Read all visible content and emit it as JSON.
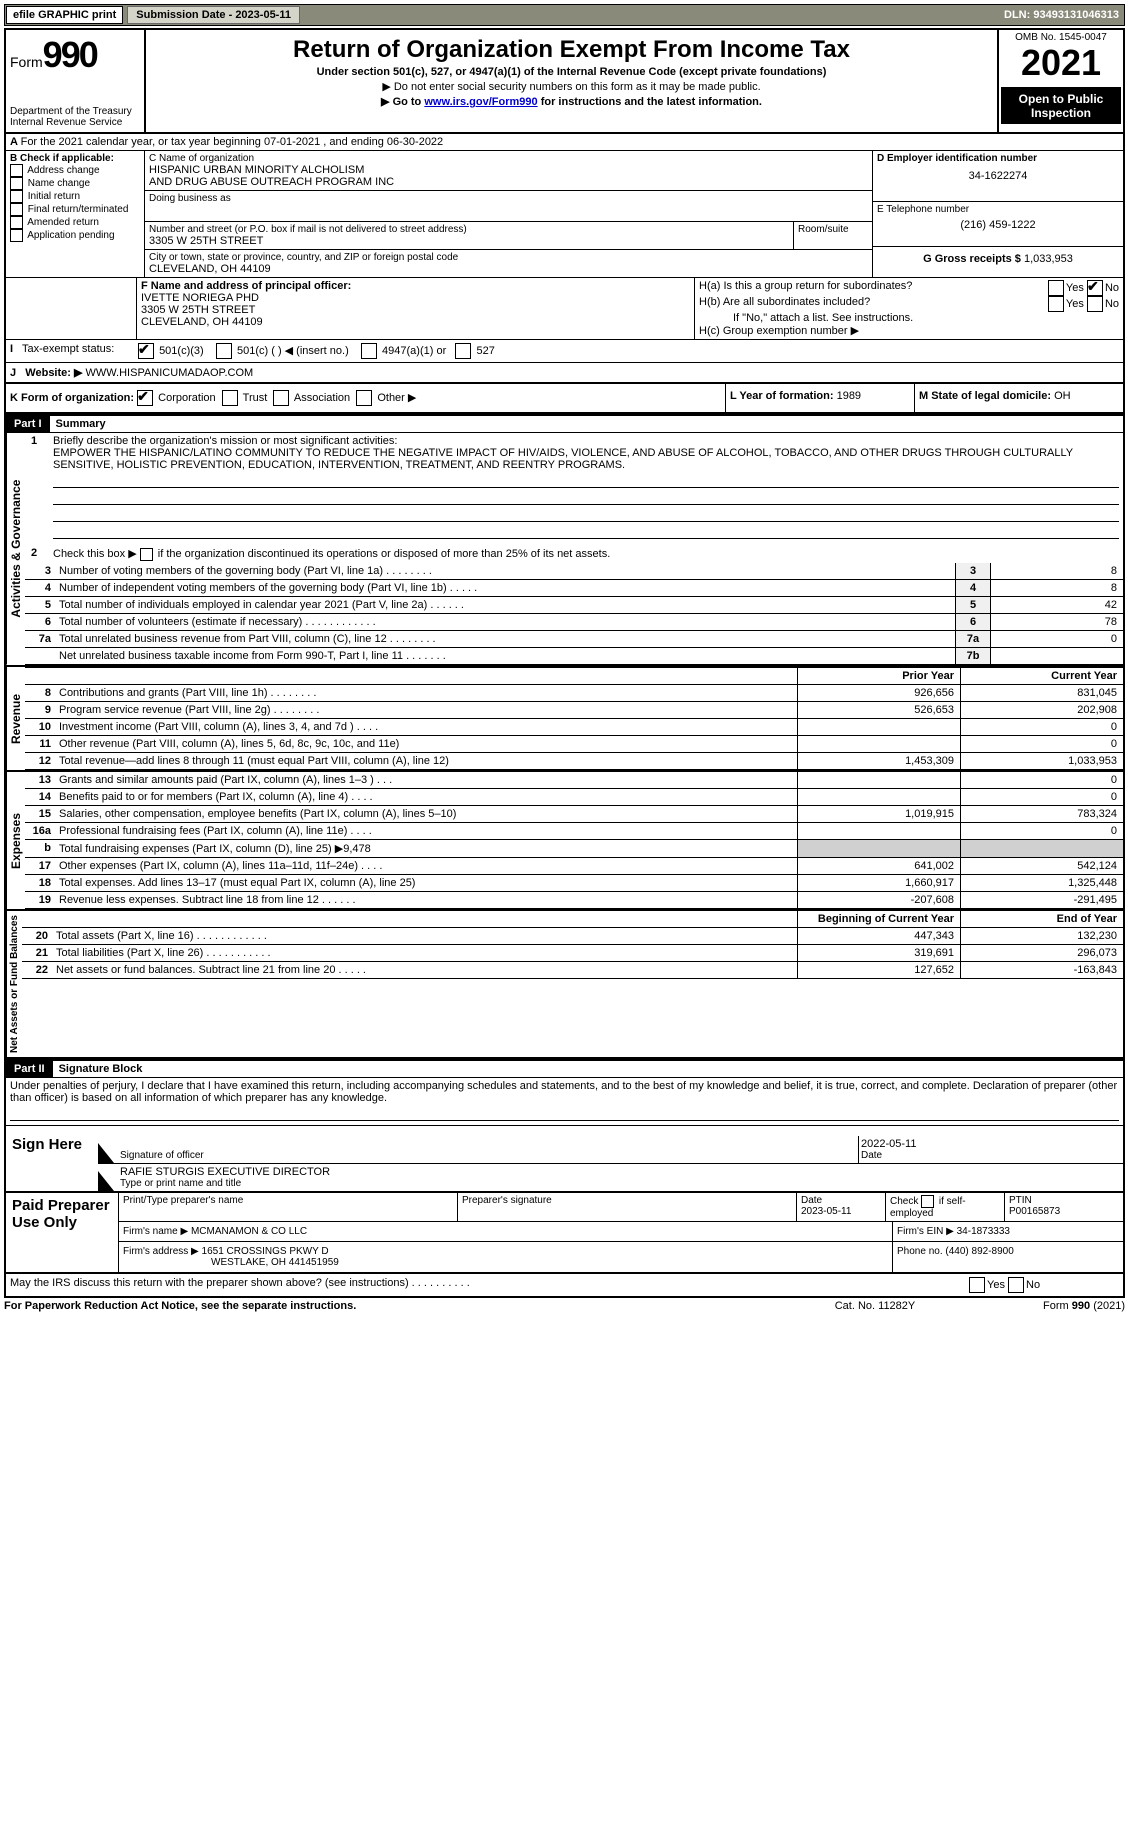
{
  "topbar": {
    "efile": "efile GRAPHIC print",
    "submission_label": "Submission Date - 2023-05-11",
    "dln": "DLN: 93493131046313"
  },
  "header": {
    "form_label": "Form",
    "form_num": "990",
    "dept": "Department of the Treasury",
    "irs": "Internal Revenue Service",
    "title": "Return of Organization Exempt From Income Tax",
    "subtitle": "Under section 501(c), 527, or 4947(a)(1) of the Internal Revenue Code (except private foundations)",
    "note1": "▶ Do not enter social security numbers on this form as it may be made public.",
    "note2_pre": "▶ Go to ",
    "note2_link": "www.irs.gov/Form990",
    "note2_post": " for instructions and the latest information.",
    "omb": "OMB No. 1545-0047",
    "year": "2021",
    "open": "Open to Public Inspection"
  },
  "A": {
    "text": "For the 2021 calendar year, or tax year beginning 07-01-2021    , and ending 06-30-2022"
  },
  "B": {
    "label": "B Check if applicable:",
    "opts": [
      "Address change",
      "Name change",
      "Initial return",
      "Final return/terminated",
      "Amended return",
      "Application pending"
    ]
  },
  "C": {
    "name_label": "C Name of organization",
    "name1": "HISPANIC URBAN MINORITY ALCHOLISM",
    "name2": "AND DRUG ABUSE OUTREACH PROGRAM INC",
    "dba": "Doing business as",
    "street_label": "Number and street (or P.O. box if mail is not delivered to street address)",
    "room": "Room/suite",
    "street": "3305 W 25TH STREET",
    "city_label": "City or town, state or province, country, and ZIP or foreign postal code",
    "city": "CLEVELAND, OH  44109"
  },
  "D": {
    "label": "D Employer identification number",
    "val": "34-1622274"
  },
  "E": {
    "label": "E Telephone number",
    "val": "(216) 459-1222"
  },
  "G": {
    "label": "G Gross receipts $",
    "val": "1,033,953"
  },
  "F": {
    "label": "F  Name and address of principal officer:",
    "name": "IVETTE NORIEGA PHD",
    "street": "3305 W 25TH STREET",
    "city": "CLEVELAND, OH  44109"
  },
  "H": {
    "a": "H(a)  Is this a group return for subordinates?",
    "b": "H(b)  Are all subordinates included?",
    "b_note": "If \"No,\" attach a list. See instructions.",
    "c": "H(c)  Group exemption number ▶"
  },
  "I": {
    "label": "Tax-exempt status:",
    "opt1": "501(c)(3)",
    "opt2": "501(c) (   ) ◀ (insert no.)",
    "opt3": "4947(a)(1) or",
    "opt4": "527"
  },
  "J": {
    "label": "Website: ▶",
    "val": "WWW.HISPANICUMADAOP.COM"
  },
  "K": {
    "label": "K Form of organization:",
    "opts": [
      "Corporation",
      "Trust",
      "Association",
      "Other ▶"
    ]
  },
  "L": {
    "label": "L Year of formation:",
    "val": "1989"
  },
  "M": {
    "label": "M State of legal domicile:",
    "val": "OH"
  },
  "part1": {
    "header": "Part I",
    "title": "Summary",
    "q1": "Briefly describe the organization's mission or most significant activities:",
    "mission": "EMPOWER THE HISPANIC/LATINO COMMUNITY TO REDUCE THE NEGATIVE IMPACT OF HIV/AIDS, VIOLENCE, AND ABUSE OF ALCOHOL, TOBACCO, AND OTHER DRUGS THROUGH CULTURALLY SENSITIVE, HOLISTIC PREVENTION, EDUCATION, INTERVENTION, TREATMENT, AND REENTRY PROGRAMS.",
    "q2": "Check this box ▶       if the organization discontinued its operations or disposed of more than 25% of its net assets.",
    "gov_label": "Activities & Governance",
    "rev_label": "Revenue",
    "exp_label": "Expenses",
    "net_label": "Net Assets or Fund Balances",
    "rows_gov": [
      {
        "n": "3",
        "t": "Number of voting members of the governing body (Part VI, line 1a)   .    .    .    .    .    .    .    .",
        "k": "3",
        "v": "8"
      },
      {
        "n": "4",
        "t": "Number of independent voting members of the governing body (Part VI, line 1b)   .    .    .    .    .",
        "k": "4",
        "v": "8"
      },
      {
        "n": "5",
        "t": "Total number of individuals employed in calendar year 2021 (Part V, line 2a)   .    .    .    .    .    .",
        "k": "5",
        "v": "42"
      },
      {
        "n": "6",
        "t": "Total number of volunteers (estimate if necessary)   .    .    .    .    .    .    .    .    .    .    .    .",
        "k": "6",
        "v": "78"
      },
      {
        "n": "7a",
        "t": "Total unrelated business revenue from Part VIII, column (C), line 12   .    .    .    .    .    .    .    .",
        "k": "7a",
        "v": "0"
      },
      {
        "n": "",
        "t": "Net unrelated business taxable income from Form 990-T, Part I, line 11   .    .    .    .    .    .    .",
        "k": "7b",
        "v": ""
      }
    ],
    "col_prior": "Prior Year",
    "col_current": "Current Year",
    "rows_rev": [
      {
        "n": "8",
        "t": "Contributions and grants (Part VIII, line 1h)   .    .    .    .    .    .    .    .",
        "p": "926,656",
        "c": "831,045"
      },
      {
        "n": "9",
        "t": "Program service revenue (Part VIII, line 2g)   .    .    .    .    .    .    .    .",
        "p": "526,653",
        "c": "202,908"
      },
      {
        "n": "10",
        "t": "Investment income (Part VIII, column (A), lines 3, 4, and 7d )   .    .    .    .",
        "p": "",
        "c": "0"
      },
      {
        "n": "11",
        "t": "Other revenue (Part VIII, column (A), lines 5, 6d, 8c, 9c, 10c, and 11e)",
        "p": "",
        "c": "0"
      },
      {
        "n": "12",
        "t": "Total revenue—add lines 8 through 11 (must equal Part VIII, column (A), line 12)",
        "p": "1,453,309",
        "c": "1,033,953"
      }
    ],
    "rows_exp": [
      {
        "n": "13",
        "t": "Grants and similar amounts paid (Part IX, column (A), lines 1–3 )   .    .    .",
        "p": "",
        "c": "0"
      },
      {
        "n": "14",
        "t": "Benefits paid to or for members (Part IX, column (A), line 4)   .    .    .    .",
        "p": "",
        "c": "0"
      },
      {
        "n": "15",
        "t": "Salaries, other compensation, employee benefits (Part IX, column (A), lines 5–10)",
        "p": "1,019,915",
        "c": "783,324"
      },
      {
        "n": "16a",
        "t": "Professional fundraising fees (Part IX, column (A), line 11e)   .    .    .    .",
        "p": "",
        "c": "0"
      },
      {
        "n": "b",
        "t": "Total fundraising expenses (Part IX, column (D), line 25) ▶9,478",
        "p": "shaded",
        "c": "shaded"
      },
      {
        "n": "17",
        "t": "Other expenses (Part IX, column (A), lines 11a–11d, 11f–24e)   .    .    .    .",
        "p": "641,002",
        "c": "542,124"
      },
      {
        "n": "18",
        "t": "Total expenses. Add lines 13–17 (must equal Part IX, column (A), line 25)",
        "p": "1,660,917",
        "c": "1,325,448"
      },
      {
        "n": "19",
        "t": "Revenue less expenses. Subtract line 18 from line 12   .    .    .    .    .    .",
        "p": "-207,608",
        "c": "-291,495"
      }
    ],
    "col_begin": "Beginning of Current Year",
    "col_end": "End of Year",
    "rows_net": [
      {
        "n": "20",
        "t": "Total assets (Part X, line 16)   .    .    .    .    .    .    .    .    .    .    .    .",
        "p": "447,343",
        "c": "132,230"
      },
      {
        "n": "21",
        "t": "Total liabilities (Part X, line 26)   .    .    .    .    .    .    .    .    .    .    .",
        "p": "319,691",
        "c": "296,073"
      },
      {
        "n": "22",
        "t": "Net assets or fund balances. Subtract line 21 from line 20   .    .    .    .    .",
        "p": "127,652",
        "c": "-163,843"
      }
    ]
  },
  "part2": {
    "header": "Part II",
    "title": "Signature Block",
    "decl": "Under penalties of perjury, I declare that I have examined this return, including accompanying schedules and statements, and to the best of my knowledge and belief, it is true, correct, and complete. Declaration of preparer (other than officer) is based on all information of which preparer has any knowledge."
  },
  "sign": {
    "here": "Sign Here",
    "sig_officer": "Signature of officer",
    "date": "Date",
    "date_val": "2022-05-11",
    "name": "RAFIE STURGIS  EXECUTIVE DIRECTOR",
    "name_label": "Type or print name and title"
  },
  "paid": {
    "label": "Paid Preparer Use Only",
    "col1": "Print/Type preparer's name",
    "col2": "Preparer's signature",
    "col3": "Date",
    "col3v": "2023-05-11",
    "col4": "Check        if self-employed",
    "col5": "PTIN",
    "col5v": "P00165873",
    "firm_name_l": "Firm's name    ▶",
    "firm_name": "MCMANAMON & CO LLC",
    "firm_ein_l": "Firm's EIN ▶",
    "firm_ein": "34-1873333",
    "firm_addr_l": "Firm's address ▶",
    "firm_addr1": "1651 CROSSINGS PKWY D",
    "firm_addr2": "WESTLAKE, OH  441451959",
    "phone_l": "Phone no.",
    "phone": "(440) 892-8900"
  },
  "footer": {
    "discuss": "May the IRS discuss this return with the preparer shown above? (see instructions)   .    .    .    .    .    .    .    .    .    .",
    "pra": "For Paperwork Reduction Act Notice, see the separate instructions.",
    "cat": "Cat. No. 11282Y",
    "form": "Form 990 (2021)"
  }
}
